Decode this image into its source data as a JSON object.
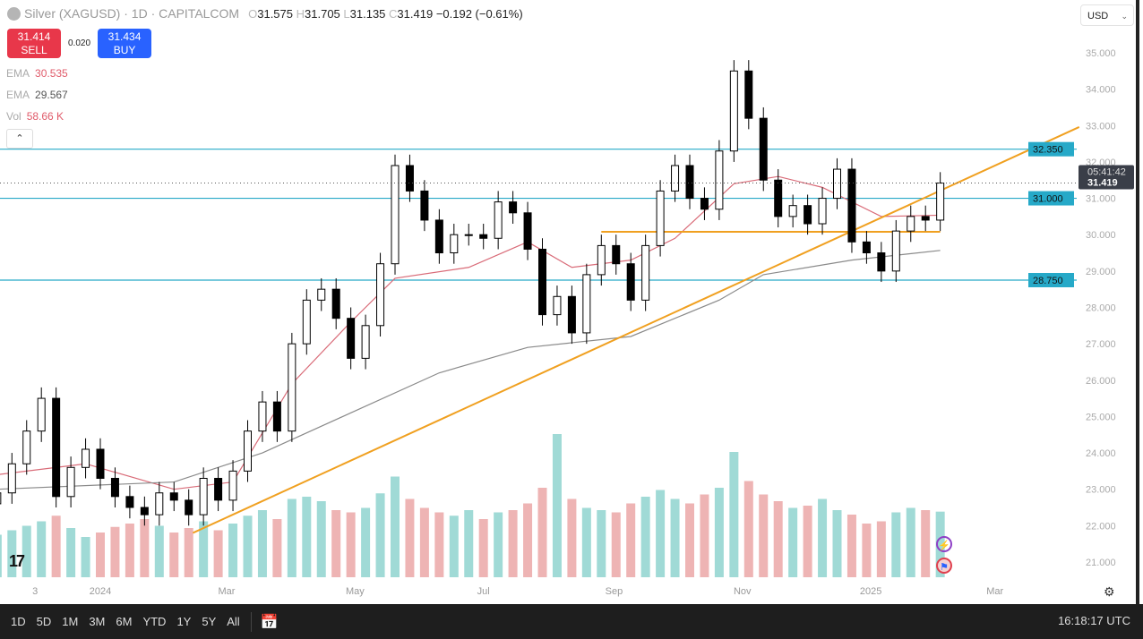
{
  "header": {
    "symbol": "Silver (XAGUSD) · 1D · CAPITALCOM",
    "o_label": "O",
    "o": "31.575",
    "h_label": "H",
    "h": "31.705",
    "l_label": "L",
    "l": "31.135",
    "c_label": "C",
    "c": "31.419",
    "change": "−0.192 (−0.61%)"
  },
  "trade": {
    "sell_price": "31.414",
    "sell_label": "SELL",
    "spread": "0.020",
    "buy_price": "31.434",
    "buy_label": "BUY"
  },
  "indicators": [
    {
      "label": "EMA",
      "value": "30.535",
      "color": "#e05b6a"
    },
    {
      "label": "EMA",
      "value": "29.567",
      "color": "#666666"
    },
    {
      "label": "Vol",
      "value": "58.66 K",
      "color": "#e05b6a"
    }
  ],
  "currency": "USD",
  "toolbar": {
    "ranges": [
      "1D",
      "5D",
      "1M",
      "3M",
      "6M",
      "YTD",
      "1Y",
      "5Y",
      "All"
    ],
    "clock": "16:18:17 UTC"
  },
  "chart_data": {
    "type": "candlestick",
    "title": "",
    "xlabel": "",
    "ylabel": "",
    "ylim": [
      20.6,
      35.4
    ],
    "y_ticks": [
      "35.000",
      "34.000",
      "33.000",
      "32.000",
      "31.000",
      "30.000",
      "29.000",
      "28.000",
      "27.000",
      "26.000",
      "25.000",
      "24.000",
      "23.000",
      "22.000",
      "21.000"
    ],
    "x_ticks": [
      {
        "label": "3",
        "date": "2023-12-01"
      },
      {
        "label": "2024",
        "date": "2024-01-01"
      },
      {
        "label": "Mar",
        "date": "2024-03-01"
      },
      {
        "label": "May",
        "date": "2024-05-01"
      },
      {
        "label": "Jul",
        "date": "2024-07-01"
      },
      {
        "label": "Sep",
        "date": "2024-09-01"
      },
      {
        "label": "Nov",
        "date": "2024-11-01"
      },
      {
        "label": "2025",
        "date": "2025-01-01"
      },
      {
        "label": "Mar",
        "date": "2025-03-01"
      }
    ],
    "dates": [
      "2023-11-13",
      "2023-11-20",
      "2023-11-27",
      "2023-12-04",
      "2023-12-11",
      "2023-12-18",
      "2023-12-25",
      "2024-01-01",
      "2024-01-08",
      "2024-01-15",
      "2024-01-22",
      "2024-01-29",
      "2024-02-05",
      "2024-02-12",
      "2024-02-19",
      "2024-02-26",
      "2024-03-04",
      "2024-03-11",
      "2024-03-18",
      "2024-03-25",
      "2024-04-01",
      "2024-04-08",
      "2024-04-15",
      "2024-04-22",
      "2024-04-29",
      "2024-05-06",
      "2024-05-13",
      "2024-05-20",
      "2024-05-27",
      "2024-06-03",
      "2024-06-10",
      "2024-06-17",
      "2024-06-24",
      "2024-07-01",
      "2024-07-08",
      "2024-07-15",
      "2024-07-22",
      "2024-07-29",
      "2024-08-05",
      "2024-08-12",
      "2024-08-19",
      "2024-08-26",
      "2024-09-02",
      "2024-09-09",
      "2024-09-16",
      "2024-09-23",
      "2024-09-30",
      "2024-10-07",
      "2024-10-14",
      "2024-10-21",
      "2024-10-28",
      "2024-11-04",
      "2024-11-11",
      "2024-11-18",
      "2024-11-25",
      "2024-12-02",
      "2024-12-09",
      "2024-12-16",
      "2024-12-23",
      "2024-12-30",
      "2025-01-06",
      "2025-01-13",
      "2025-01-20",
      "2025-01-27",
      "2025-02-03"
    ],
    "close": [
      22.9,
      23.7,
      24.6,
      25.5,
      22.8,
      23.6,
      24.1,
      23.3,
      22.8,
      22.5,
      22.3,
      22.9,
      22.7,
      22.3,
      23.3,
      22.7,
      23.5,
      24.6,
      25.4,
      24.6,
      27.0,
      28.2,
      28.5,
      27.7,
      26.6,
      27.5,
      29.2,
      31.9,
      31.2,
      30.4,
      29.5,
      30.0,
      30.0,
      29.9,
      30.9,
      30.6,
      29.6,
      27.8,
      28.3,
      27.3,
      28.9,
      29.7,
      29.2,
      28.2,
      29.7,
      31.2,
      31.9,
      31.0,
      30.7,
      32.3,
      34.5,
      33.2,
      31.5,
      30.5,
      30.8,
      30.3,
      31.0,
      31.8,
      29.8,
      29.5,
      29.0,
      30.1,
      30.5,
      30.4,
      31.419
    ],
    "volume_k": [
      38,
      42,
      46,
      50,
      55,
      44,
      36,
      40,
      45,
      48,
      52,
      46,
      40,
      44,
      50,
      42,
      48,
      55,
      60,
      52,
      70,
      72,
      68,
      60,
      58,
      62,
      75,
      90,
      70,
      62,
      58,
      55,
      60,
      52,
      58,
      60,
      66,
      80,
      128,
      70,
      62,
      60,
      58,
      66,
      72,
      78,
      70,
      66,
      74,
      80,
      112,
      86,
      74,
      68,
      62,
      64,
      70,
      60,
      56,
      48,
      50,
      58,
      62,
      60,
      58.66
    ],
    "series": [
      {
        "name": "EMA",
        "color": "#d96b78",
        "points": [
          [
            0,
            23.4
          ],
          [
            6,
            23.7
          ],
          [
            12,
            23.0
          ],
          [
            16,
            23.2
          ],
          [
            20,
            25.9
          ],
          [
            24,
            27.6
          ],
          [
            27,
            28.8
          ],
          [
            32,
            29.1
          ],
          [
            36,
            29.8
          ],
          [
            39,
            29.1
          ],
          [
            43,
            29.3
          ],
          [
            46,
            29.9
          ],
          [
            50,
            31.4
          ],
          [
            53,
            31.6
          ],
          [
            56,
            31.3
          ],
          [
            60,
            30.5
          ],
          [
            64,
            30.535
          ]
        ]
      },
      {
        "name": "EMA",
        "color": "#8a8a8a",
        "points": [
          [
            0,
            23.0
          ],
          [
            12,
            23.2
          ],
          [
            18,
            24.0
          ],
          [
            24,
            25.1
          ],
          [
            30,
            26.2
          ],
          [
            36,
            26.9
          ],
          [
            43,
            27.2
          ],
          [
            49,
            28.2
          ],
          [
            52,
            28.9
          ],
          [
            58,
            29.3
          ],
          [
            64,
            29.567
          ]
        ]
      }
    ],
    "trendlines": [
      {
        "from": [
          "2024-02-14",
          21.8
        ],
        "to": [
          "2025-04-10",
          32.96
        ],
        "color": "#f0a020"
      },
      {
        "from": [
          "2024-08-26",
          30.08
        ],
        "to": [
          "2025-02-03",
          30.08
        ],
        "color": "#f0a020"
      }
    ],
    "levels": [
      {
        "value": 32.35,
        "label": "32.350",
        "color": "#26a9c8"
      },
      {
        "value": 31.0,
        "label": "31.000",
        "color": "#26a9c8"
      },
      {
        "value": 28.75,
        "label": "28.750",
        "color": "#26a9c8"
      }
    ],
    "last_price": {
      "value": 31.419,
      "label": "31.419",
      "countdown": "05:41:42"
    },
    "colors": {
      "up": "#ffffff",
      "down": "#000000",
      "vol_up": "#8fd3cf",
      "vol_down": "#eba7a7"
    },
    "grid": false
  }
}
